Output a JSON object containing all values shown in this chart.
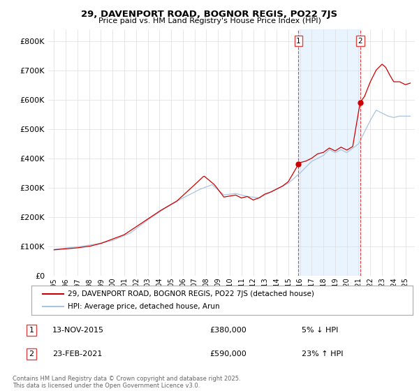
{
  "title": "29, DAVENPORT ROAD, BOGNOR REGIS, PO22 7JS",
  "subtitle": "Price paid vs. HM Land Registry's House Price Index (HPI)",
  "ytick_values": [
    0,
    100000,
    200000,
    300000,
    400000,
    500000,
    600000,
    700000,
    800000
  ],
  "ylim": [
    0,
    840000
  ],
  "marker1_year": 2015.87,
  "marker1_value": 380000,
  "marker2_year": 2021.13,
  "marker2_value": 590000,
  "legend1_label": "29, DAVENPORT ROAD, BOGNOR REGIS, PO22 7JS (detached house)",
  "legend2_label": "HPI: Average price, detached house, Arun",
  "table_rows": [
    {
      "num": "1",
      "date": "13-NOV-2015",
      "amount": "£380,000",
      "pct": "5% ↓ HPI"
    },
    {
      "num": "2",
      "date": "23-FEB-2021",
      "amount": "£590,000",
      "pct": "23% ↑ HPI"
    }
  ],
  "footnote": "Contains HM Land Registry data © Crown copyright and database right 2025.\nThis data is licensed under the Open Government Licence v3.0.",
  "hpi_color": "#aac4e0",
  "price_color": "#cc0000",
  "marker_line_color": "#dd4444",
  "shade_color": "#ddeeff",
  "bg_color": "#ffffff",
  "grid_color": "#dddddd"
}
